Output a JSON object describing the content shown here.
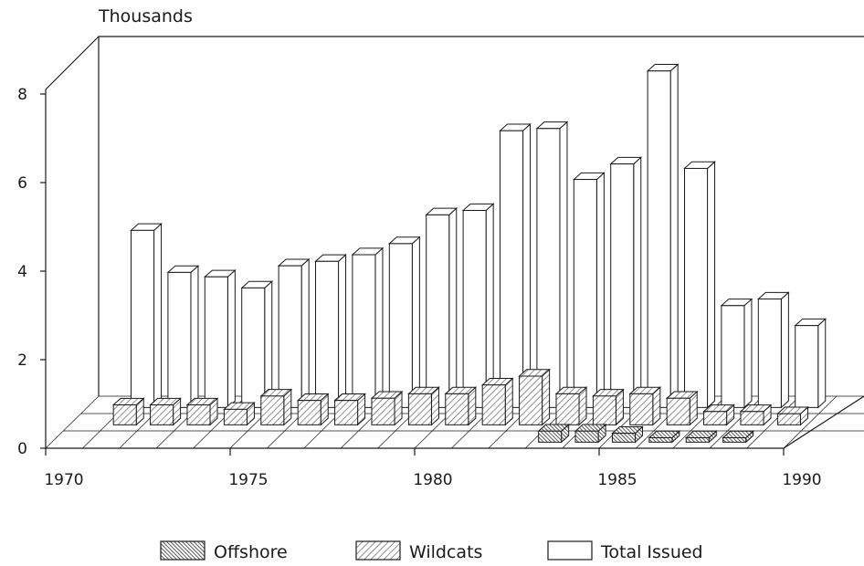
{
  "chart_data": {
    "type": "bar",
    "style": "3d-depth",
    "title": "",
    "y_unit_label": "Thousands",
    "ylim": [
      0,
      8.8
    ],
    "y_ticks": [
      "0",
      "2",
      "4",
      "6",
      "8"
    ],
    "x_ticks": [
      "1970",
      "1975",
      "1980",
      "1985",
      "1990"
    ],
    "x_years": [
      1971,
      1972,
      1973,
      1974,
      1975,
      1976,
      1977,
      1978,
      1979,
      1980,
      1981,
      1982,
      1983,
      1984,
      1985,
      1986,
      1987,
      1988,
      1989
    ],
    "grid": true,
    "legend_position": "bottom",
    "series": [
      {
        "name": "Offshore",
        "pattern": "dense-hatch",
        "values": [
          null,
          null,
          null,
          null,
          null,
          null,
          null,
          null,
          null,
          null,
          null,
          null,
          0.25,
          0.25,
          0.2,
          0.1,
          0.1,
          0.1,
          null
        ]
      },
      {
        "name": "Wildcats",
        "pattern": "diagonal-hatch",
        "values": [
          0.45,
          0.45,
          0.45,
          0.35,
          0.65,
          0.55,
          0.55,
          0.6,
          0.7,
          0.7,
          0.9,
          1.1,
          0.7,
          0.65,
          0.7,
          0.6,
          0.3,
          0.3,
          0.25
        ]
      },
      {
        "name": "Total Issued",
        "pattern": "plain",
        "values": [
          4.0,
          3.05,
          2.95,
          2.7,
          3.2,
          3.3,
          3.45,
          3.7,
          4.35,
          4.45,
          6.25,
          6.3,
          5.15,
          5.5,
          7.6,
          5.4,
          2.3,
          2.45,
          1.85
        ]
      }
    ],
    "colors": {
      "line": "#1a1a1a",
      "fill": "#ffffff",
      "dense_hatch": "#333333",
      "hatch": "#555555"
    }
  }
}
